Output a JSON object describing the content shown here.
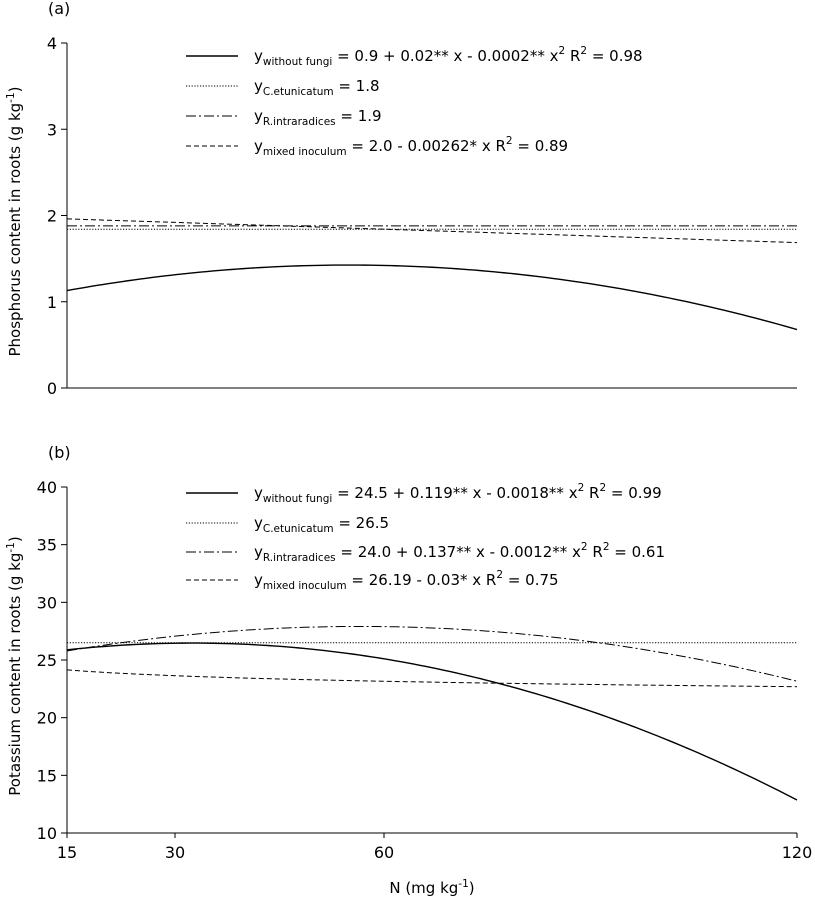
{
  "chart_data": [
    {
      "type": "line",
      "panel_label": "(a)",
      "ylabel": "Phosphorus content  in roots (g kg",
      "ylabel_sup": "-1",
      "ylabel_close": ")",
      "ylim": [
        0,
        4
      ],
      "yticks": [
        {
          "value": 0,
          "label": "0"
        },
        {
          "value": 1,
          "label": "1"
        },
        {
          "value": 2,
          "label": "2"
        },
        {
          "value": 3,
          "label": "3"
        },
        {
          "value": 4,
          "label": "4"
        }
      ],
      "xlim": [
        15,
        120
      ],
      "series": [
        {
          "name": "without fungi",
          "style": "solid",
          "model": "quadratic",
          "coef": {
            "a": 0.87,
            "b": 0.02,
            "c": -0.00018
          },
          "eq": {
            "y": "y",
            "sub": "without fungi",
            "rhs": " = 0.9 + 0.02** x - 0.0002** x",
            "sup": "2",
            "tail": "   R",
            "tail_sup": "2",
            "tail_end": " = 0.98"
          }
        },
        {
          "name": "C.etunicatum",
          "style": "dotted",
          "model": "quadratic",
          "coef": {
            "a": 1.84,
            "b": 0,
            "c": 0
          },
          "eq": {
            "y": "y",
            "sub": "C.etunicatum",
            "rhs": " = 1.8",
            "sup": "",
            "tail": "",
            "tail_sup": "",
            "tail_end": ""
          }
        },
        {
          "name": "R.intraradices",
          "style": "dashdot",
          "model": "quadratic",
          "coef": {
            "a": 1.88,
            "b": 0,
            "c": 0
          },
          "eq": {
            "y": "y",
            "sub": "R.intraradices",
            "rhs": " = 1.9",
            "sup": "",
            "tail": "",
            "tail_sup": "",
            "tail_end": ""
          }
        },
        {
          "name": "mixed inoculum",
          "style": "dashed",
          "model": "quadratic",
          "coef": {
            "a": 2.0,
            "b": -0.00262,
            "c": 0
          },
          "eq": {
            "y": "y",
            "sub": "mixed inoculum",
            "rhs": " = 2.0 - 0.00262* x   R",
            "sup": "2",
            "tail": " = 0.89",
            "tail_sup": "",
            "tail_end": ""
          }
        }
      ]
    },
    {
      "type": "line",
      "panel_label": "(b)",
      "ylabel": "Potassium content in roots (g kg",
      "ylabel_sup": "-1",
      "ylabel_close": ")",
      "ylim": [
        10,
        40
      ],
      "yticks": [
        {
          "value": 10,
          "label": "10"
        },
        {
          "value": 15,
          "label": "15"
        },
        {
          "value": 20,
          "label": "20"
        },
        {
          "value": 25,
          "label": "25"
        },
        {
          "value": 30,
          "label": "30"
        },
        {
          "value": 35,
          "label": "35"
        },
        {
          "value": 40,
          "label": "40"
        }
      ],
      "xlim": [
        15,
        120
      ],
      "xticks": [
        {
          "value": 15,
          "label": "15"
        },
        {
          "value": 30,
          "label": "30"
        },
        {
          "value": 60,
          "label": "60"
        },
        {
          "value": 120,
          "label": "120"
        }
      ],
      "xlabel": "N (mg kg",
      "xlabel_sup": "-1",
      "xlabel_close": ")",
      "series": [
        {
          "name": "without fungi",
          "style": "solid",
          "model": "quadratic",
          "coef": {
            "a": 24.5,
            "b": 0.119,
            "c": -0.0018
          },
          "eq": {
            "y": "y",
            "sub": "without fungi",
            "rhs": " = 24.5 + 0.119** x - 0.0018** x",
            "sup": "2",
            "tail": "   R",
            "tail_sup": "2",
            "tail_end": " = 0.99"
          }
        },
        {
          "name": "C.etunicatum",
          "style": "dotted",
          "model": "quadratic",
          "coef": {
            "a": 26.5,
            "b": 0,
            "c": 0
          },
          "eq": {
            "y": "y",
            "sub": "C.etunicatum",
            "rhs": " = 26.5",
            "sup": "",
            "tail": "",
            "tail_sup": "",
            "tail_end": ""
          }
        },
        {
          "name": "R.intraradices",
          "style": "dashdot",
          "model": "quadratic",
          "coef": {
            "a": 24.0,
            "b": 0.137,
            "c": -0.0012
          },
          "eq": {
            "y": "y",
            "sub": "R.intraradices",
            "rhs": " = 24.0 + 0.137** x - 0.0012** x",
            "sup": "2",
            "tail": "   R",
            "tail_sup": "2",
            "tail_end": " = 0.61"
          }
        },
        {
          "name": "mixed inoculum",
          "style": "dashed",
          "model": "power",
          "coef": {
            "k": 26.19,
            "p": -0.03
          },
          "eq": {
            "y": "y",
            "sub": "mixed inoculum",
            "rhs": " = 26.19 - 0.03* x   R",
            "sup": "2",
            "tail": " = 0.75",
            "tail_sup": "",
            "tail_end": ""
          }
        }
      ]
    }
  ]
}
